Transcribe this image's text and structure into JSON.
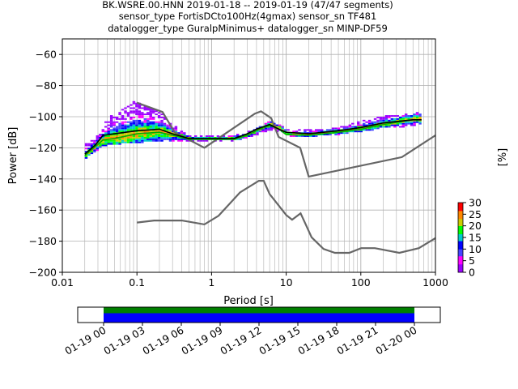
{
  "chart_data": [
    {
      "type": "psd-histogram",
      "title_lines": [
        "BK.WSRE.00.HNN   2019-01-18 -- 2019-01-19  (47/47 segments)",
        "sensor_type FortisDCto100Hz(4gmax) sensor_sn TF481",
        "datalogger_type GuralpMinimus+ datalogger_sn MINP-DF59"
      ],
      "xlabel": "Period [s]",
      "ylabel": "Power [dB]",
      "x_scale": "log",
      "xlim": [
        0.01,
        1000
      ],
      "ylim": [
        -200,
        -50
      ],
      "x_ticks": [
        {
          "value": 0.01,
          "label": "0.01"
        },
        {
          "value": 0.1,
          "label": "0.1"
        },
        {
          "value": 1,
          "label": "1"
        },
        {
          "value": 10,
          "label": "10"
        },
        {
          "value": 100,
          "label": "100"
        },
        {
          "value": 1000,
          "label": "1000"
        }
      ],
      "y_ticks": [
        {
          "value": -60,
          "label": "−60"
        },
        {
          "value": -80,
          "label": "−80"
        },
        {
          "value": -100,
          "label": "−100"
        },
        {
          "value": -120,
          "label": "−120"
        },
        {
          "value": -140,
          "label": "−140"
        },
        {
          "value": -160,
          "label": "−160"
        },
        {
          "value": -180,
          "label": "−180"
        },
        {
          "value": -200,
          "label": "−200"
        }
      ],
      "grid": true,
      "noise_models": [
        {
          "points": [
            [
              0.1,
              -91
            ],
            [
              0.22,
              -97
            ],
            [
              0.32,
              -110
            ],
            [
              0.8,
              -120
            ],
            [
              3.8,
              -98
            ],
            [
              4.6,
              -96.5
            ],
            [
              6.3,
              -101
            ],
            [
              7.9,
              -113
            ],
            [
              15.4,
              -120
            ],
            [
              20,
              -138.5
            ],
            [
              354.8,
              -126
            ],
            [
              1000,
              -112
            ]
          ]
        },
        {
          "points": [
            [
              0.1,
              -168
            ],
            [
              0.17,
              -166.7
            ],
            [
              0.4,
              -166.7
            ],
            [
              0.8,
              -169.2
            ],
            [
              1.24,
              -163.7
            ],
            [
              2.4,
              -148.7
            ],
            [
              4.3,
              -141.2
            ],
            [
              5,
              -141.2
            ],
            [
              6,
              -149.7
            ],
            [
              10,
              -163.2
            ],
            [
              12,
              -166.2
            ],
            [
              15.6,
              -162.1
            ],
            [
              21.9,
              -177.5
            ],
            [
              31.6,
              -185
            ],
            [
              45,
              -187.5
            ],
            [
              70,
              -187.5
            ],
            [
              101,
              -184.5
            ],
            [
              154,
              -184.5
            ],
            [
              328,
              -187.5
            ],
            [
              600,
              -184.5
            ],
            [
              1000,
              -178
            ]
          ]
        }
      ],
      "mean_curve": [
        [
          0.02,
          -124
        ],
        [
          0.028,
          -118
        ],
        [
          0.035,
          -112
        ],
        [
          0.05,
          -111
        ],
        [
          0.1,
          -109
        ],
        [
          0.2,
          -108
        ],
        [
          0.3,
          -111
        ],
        [
          0.5,
          -114
        ],
        [
          1,
          -114
        ],
        [
          2,
          -114
        ],
        [
          3,
          -111
        ],
        [
          4,
          -108
        ],
        [
          6,
          -105
        ],
        [
          8,
          -108
        ],
        [
          10,
          -110
        ],
        [
          20,
          -111
        ],
        [
          50,
          -109
        ],
        [
          100,
          -107
        ],
        [
          200,
          -104
        ],
        [
          500,
          -102
        ],
        [
          650,
          -102
        ]
      ],
      "mode_curve": [
        [
          0.02,
          -125
        ],
        [
          0.028,
          -119
        ],
        [
          0.035,
          -115
        ],
        [
          0.05,
          -114
        ],
        [
          0.1,
          -111
        ],
        [
          0.2,
          -110
        ],
        [
          0.3,
          -112
        ],
        [
          0.5,
          -114.5
        ],
        [
          1,
          -114.5
        ],
        [
          2,
          -114.5
        ],
        [
          3,
          -112
        ],
        [
          4,
          -109
        ],
        [
          6,
          -105.5
        ],
        [
          8,
          -108
        ],
        [
          10,
          -111.5
        ],
        [
          20,
          -112
        ],
        [
          50,
          -110
        ],
        [
          100,
          -108
        ],
        [
          200,
          -105
        ],
        [
          500,
          -102
        ],
        [
          650,
          -102
        ]
      ],
      "histogram_envelope": {
        "upper": [
          [
            0.02,
            -118
          ],
          [
            0.03,
            -112
          ],
          [
            0.04,
            -100
          ],
          [
            0.06,
            -96
          ],
          [
            0.09,
            -90
          ],
          [
            0.12,
            -93
          ],
          [
            0.2,
            -98
          ],
          [
            0.3,
            -106
          ],
          [
            0.5,
            -113
          ],
          [
            1,
            -113
          ],
          [
            2,
            -112
          ],
          [
            3,
            -110
          ],
          [
            4,
            -107
          ],
          [
            6,
            -103
          ],
          [
            8,
            -106
          ],
          [
            10,
            -109
          ],
          [
            20,
            -109
          ],
          [
            50,
            -107
          ],
          [
            100,
            -103
          ],
          [
            200,
            -100
          ],
          [
            650,
            -97.5
          ]
        ],
        "lower": [
          [
            0.02,
            -127
          ],
          [
            0.03,
            -122
          ],
          [
            0.04,
            -118
          ],
          [
            0.06,
            -118
          ],
          [
            0.09,
            -117
          ],
          [
            0.12,
            -117
          ],
          [
            0.2,
            -116
          ],
          [
            0.3,
            -116
          ],
          [
            0.5,
            -116
          ],
          [
            1,
            -116
          ],
          [
            2,
            -116
          ],
          [
            3,
            -114
          ],
          [
            4,
            -112
          ],
          [
            6,
            -109
          ],
          [
            8,
            -111
          ],
          [
            10,
            -113
          ],
          [
            20,
            -114
          ],
          [
            50,
            -112
          ],
          [
            100,
            -110
          ],
          [
            200,
            -108
          ],
          [
            650,
            -106
          ]
        ]
      },
      "colorbar": {
        "label": "[%]",
        "range": [
          0,
          30
        ],
        "ticks": [
          {
            "value": 0,
            "label": "0"
          },
          {
            "value": 5,
            "label": "5"
          },
          {
            "value": 10,
            "label": "10"
          },
          {
            "value": 15,
            "label": "15"
          },
          {
            "value": 20,
            "label": "20"
          },
          {
            "value": 25,
            "label": "25"
          },
          {
            "value": 30,
            "label": "30"
          }
        ]
      }
    },
    {
      "type": "timeline",
      "time_ticks": [
        "01-19 00",
        "01-19 03",
        "01-19 06",
        "01-19 09",
        "01-19 12",
        "01-19 15",
        "01-19 18",
        "01-19 21",
        "01-20 00"
      ],
      "coverage_hours": [
        0,
        24
      ],
      "axis_hours": [
        -2,
        26
      ]
    }
  ],
  "colors": {
    "noise_model": "#666666",
    "mean": "#000000",
    "mode": "#00b000",
    "coverage_top": "#008000",
    "coverage_bottom": "#0000ff",
    "cmap": [
      "#ffffff",
      "#9b00ff",
      "#ff00ff",
      "#4444ff",
      "#0000ff",
      "#00cccc",
      "#00ff00",
      "#cccc00",
      "#ff8800",
      "#ff0000"
    ]
  }
}
